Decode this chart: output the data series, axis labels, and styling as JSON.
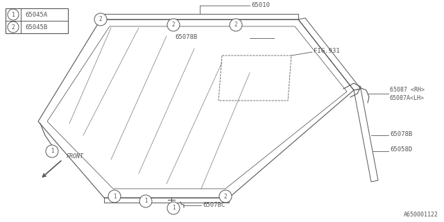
{
  "background_color": "#ffffff",
  "line_color": "#555555",
  "legend_items": [
    {
      "number": "1",
      "label": "65045A"
    },
    {
      "number": "2",
      "label": "65045B"
    }
  ],
  "diagram_id": "A650001122",
  "figsize": [
    6.4,
    3.2
  ],
  "dpi": 100
}
